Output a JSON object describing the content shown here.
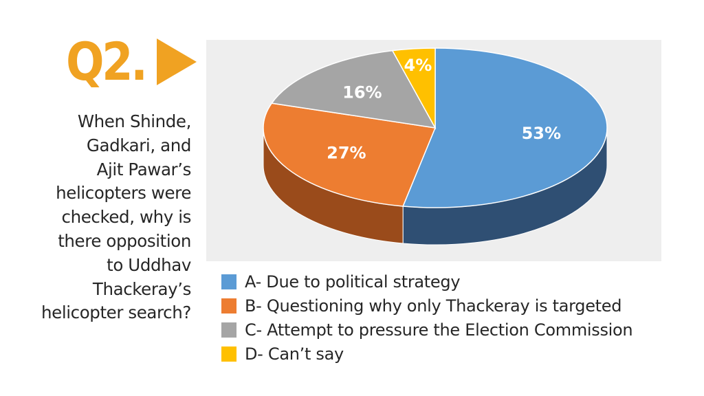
{
  "question_number": "Q2.",
  "question_lines": [
    "When Shinde,",
    "Gadkari, and",
    "Ajit Pawar’s",
    "helicopters were",
    "checked, why is",
    "there opposition",
    "to Uddhav",
    "Thackeray’s",
    "helicopter search?"
  ],
  "chart_data": {
    "type": "pie",
    "style": "3d",
    "slices": [
      {
        "label": "A- Due to political strategy",
        "value": 53,
        "value_label": "53%",
        "color": "#5b9bd5",
        "side_color": "#2f4f73"
      },
      {
        "label": "B- Questioning why only Thackeray is targeted",
        "value": 27,
        "value_label": "27%",
        "color": "#ed7d31",
        "side_color": "#9a4b1b"
      },
      {
        "label": "C- Attempt to pressure the Election Commission",
        "value": 16,
        "value_label": "16%",
        "color": "#a5a5a5",
        "side_color": "#6b6b6b"
      },
      {
        "label": "D- Can’t say",
        "value": 4,
        "value_label": "4%",
        "color": "#ffc000",
        "side_color": "#a67c00"
      }
    ]
  },
  "colors": {
    "accent": "#f0a222",
    "chart_background": "#eeeeee"
  }
}
